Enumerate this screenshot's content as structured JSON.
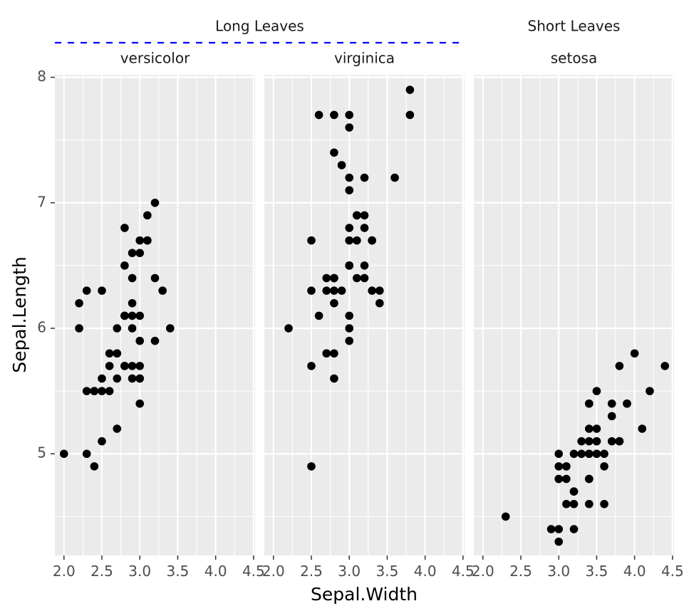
{
  "chart_data": {
    "type": "scatter",
    "xlabel": "Sepal.Width",
    "ylabel": "Sepal.Length",
    "xlim": [
      1.88,
      4.52
    ],
    "ylim": [
      4.19,
      8.02
    ],
    "x_ticks": [
      2.0,
      2.5,
      3.0,
      3.5,
      4.0,
      4.5
    ],
    "x_tick_labels": [
      "2.0",
      "2.5",
      "3.0",
      "3.5",
      "4.0",
      "4.5"
    ],
    "y_ticks": [
      5,
      6,
      7,
      8
    ],
    "y_tick_labels": [
      "5",
      "6",
      "7",
      "8"
    ],
    "grid": true,
    "colors": {
      "panel_bg": "#ebebeb",
      "grid": "#ffffff",
      "point": "#000000",
      "nest_line": "#0000ff"
    },
    "groups": [
      {
        "label": "Long Leaves",
        "panels": [
          "versicolor",
          "virginica"
        ]
      },
      {
        "label": "Short Leaves",
        "panels": [
          "setosa"
        ]
      }
    ],
    "panels": [
      {
        "name": "versicolor",
        "points": [
          [
            3.2,
            7.0
          ],
          [
            3.2,
            6.4
          ],
          [
            3.1,
            6.9
          ],
          [
            2.3,
            5.5
          ],
          [
            2.8,
            6.5
          ],
          [
            2.8,
            5.7
          ],
          [
            3.3,
            6.3
          ],
          [
            2.4,
            4.9
          ],
          [
            2.9,
            6.6
          ],
          [
            2.7,
            5.2
          ],
          [
            2.0,
            5.0
          ],
          [
            3.0,
            5.9
          ],
          [
            2.2,
            6.0
          ],
          [
            2.9,
            6.1
          ],
          [
            2.9,
            5.6
          ],
          [
            3.1,
            6.7
          ],
          [
            3.0,
            5.6
          ],
          [
            2.7,
            5.8
          ],
          [
            2.2,
            6.2
          ],
          [
            2.5,
            5.6
          ],
          [
            3.2,
            5.9
          ],
          [
            2.8,
            6.1
          ],
          [
            2.5,
            6.3
          ],
          [
            2.8,
            6.1
          ],
          [
            2.9,
            6.4
          ],
          [
            3.0,
            6.6
          ],
          [
            2.8,
            6.8
          ],
          [
            3.0,
            6.7
          ],
          [
            2.9,
            6.0
          ],
          [
            2.6,
            5.7
          ],
          [
            2.4,
            5.5
          ],
          [
            2.4,
            5.5
          ],
          [
            2.7,
            5.8
          ],
          [
            2.7,
            6.0
          ],
          [
            3.0,
            5.4
          ],
          [
            3.4,
            6.0
          ],
          [
            3.1,
            6.7
          ],
          [
            2.3,
            6.3
          ],
          [
            3.0,
            5.6
          ],
          [
            2.5,
            5.5
          ],
          [
            2.6,
            5.5
          ],
          [
            3.0,
            6.1
          ],
          [
            2.6,
            5.8
          ],
          [
            2.3,
            5.0
          ],
          [
            2.7,
            5.6
          ],
          [
            3.0,
            5.7
          ],
          [
            2.9,
            5.7
          ],
          [
            2.9,
            6.2
          ],
          [
            2.5,
            5.1
          ],
          [
            2.8,
            5.7
          ]
        ]
      },
      {
        "name": "virginica",
        "points": [
          [
            3.3,
            6.3
          ],
          [
            2.7,
            5.8
          ],
          [
            3.0,
            7.1
          ],
          [
            2.9,
            6.3
          ],
          [
            3.0,
            6.5
          ],
          [
            3.0,
            7.6
          ],
          [
            2.5,
            4.9
          ],
          [
            2.9,
            7.3
          ],
          [
            2.5,
            6.7
          ],
          [
            3.6,
            7.2
          ],
          [
            3.2,
            6.5
          ],
          [
            2.7,
            6.4
          ],
          [
            3.0,
            6.8
          ],
          [
            2.5,
            5.7
          ],
          [
            2.8,
            5.8
          ],
          [
            3.2,
            6.4
          ],
          [
            3.0,
            6.5
          ],
          [
            3.8,
            7.7
          ],
          [
            2.6,
            7.7
          ],
          [
            2.2,
            6.0
          ],
          [
            3.2,
            6.9
          ],
          [
            2.8,
            5.6
          ],
          [
            2.8,
            7.7
          ],
          [
            2.7,
            6.3
          ],
          [
            3.3,
            6.7
          ],
          [
            3.2,
            7.2
          ],
          [
            2.8,
            6.2
          ],
          [
            3.0,
            6.1
          ],
          [
            2.8,
            6.4
          ],
          [
            3.0,
            7.2
          ],
          [
            2.8,
            7.4
          ],
          [
            3.8,
            7.9
          ],
          [
            2.8,
            6.4
          ],
          [
            2.8,
            6.3
          ],
          [
            2.6,
            6.1
          ],
          [
            3.0,
            7.7
          ],
          [
            3.4,
            6.3
          ],
          [
            3.1,
            6.4
          ],
          [
            3.0,
            6.0
          ],
          [
            3.1,
            6.9
          ],
          [
            3.1,
            6.7
          ],
          [
            3.1,
            6.9
          ],
          [
            2.7,
            5.8
          ],
          [
            3.2,
            6.8
          ],
          [
            3.3,
            6.7
          ],
          [
            3.0,
            6.7
          ],
          [
            2.5,
            6.3
          ],
          [
            3.0,
            6.5
          ],
          [
            3.4,
            6.2
          ],
          [
            3.0,
            5.9
          ]
        ]
      },
      {
        "name": "setosa",
        "points": [
          [
            3.5,
            5.1
          ],
          [
            3.0,
            4.9
          ],
          [
            3.2,
            4.7
          ],
          [
            3.1,
            4.6
          ],
          [
            3.6,
            5.0
          ],
          [
            3.9,
            5.4
          ],
          [
            3.4,
            4.6
          ],
          [
            3.4,
            5.0
          ],
          [
            2.9,
            4.4
          ],
          [
            3.1,
            4.9
          ],
          [
            3.7,
            5.4
          ],
          [
            3.4,
            4.8
          ],
          [
            3.0,
            4.8
          ],
          [
            3.0,
            4.3
          ],
          [
            4.0,
            5.8
          ],
          [
            4.4,
            5.7
          ],
          [
            3.9,
            5.4
          ],
          [
            3.5,
            5.1
          ],
          [
            3.8,
            5.7
          ],
          [
            3.8,
            5.1
          ],
          [
            3.4,
            5.4
          ],
          [
            3.7,
            5.1
          ],
          [
            3.6,
            4.6
          ],
          [
            3.3,
            5.1
          ],
          [
            3.4,
            4.8
          ],
          [
            3.0,
            5.0
          ],
          [
            3.4,
            5.0
          ],
          [
            3.5,
            5.2
          ],
          [
            3.4,
            5.2
          ],
          [
            3.2,
            4.7
          ],
          [
            3.1,
            4.8
          ],
          [
            3.4,
            5.4
          ],
          [
            4.1,
            5.2
          ],
          [
            4.2,
            5.5
          ],
          [
            3.1,
            4.9
          ],
          [
            3.2,
            5.0
          ],
          [
            3.5,
            5.5
          ],
          [
            3.6,
            4.9
          ],
          [
            3.0,
            4.4
          ],
          [
            3.4,
            5.1
          ],
          [
            3.5,
            5.0
          ],
          [
            2.3,
            4.5
          ],
          [
            3.2,
            4.4
          ],
          [
            3.5,
            5.0
          ],
          [
            3.8,
            5.1
          ],
          [
            3.0,
            4.8
          ],
          [
            3.8,
            5.1
          ],
          [
            3.2,
            4.6
          ],
          [
            3.7,
            5.3
          ],
          [
            3.3,
            5.0
          ]
        ]
      }
    ]
  }
}
